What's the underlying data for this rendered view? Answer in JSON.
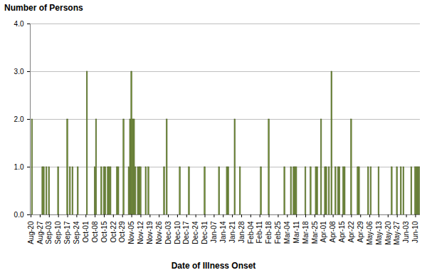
{
  "chart_data": {
    "type": "bar",
    "x_label": "Date of Illness Onset",
    "y_label": "Number of Persons",
    "categories": [
      "Aug-20",
      null,
      null,
      null,
      null,
      null,
      null,
      "Aug-27",
      null,
      null,
      null,
      null,
      null,
      null,
      "Sep-03",
      null,
      null,
      null,
      null,
      null,
      null,
      "Sep-10",
      null,
      null,
      null,
      null,
      null,
      null,
      "Sep-17",
      null,
      null,
      null,
      null,
      null,
      null,
      "Sep-24",
      null,
      null,
      null,
      null,
      null,
      null,
      "Oct-01",
      null,
      null,
      null,
      null,
      null,
      null,
      "Oct-08",
      null,
      null,
      null,
      null,
      null,
      null,
      "Oct-15",
      null,
      null,
      null,
      null,
      null,
      null,
      "Oct-22",
      null,
      null,
      null,
      null,
      null,
      null,
      "Oct-29",
      null,
      null,
      null,
      null,
      null,
      null,
      "Nov-05",
      null,
      null,
      null,
      null,
      null,
      null,
      "Nov-12",
      null,
      null,
      null,
      null,
      null,
      null,
      "Nov-19",
      null,
      null,
      null,
      null,
      null,
      null,
      "Nov-26",
      null,
      null,
      null,
      null,
      null,
      null,
      "Dec-03",
      null,
      null,
      null,
      null,
      null,
      null,
      "Dec-10",
      null,
      null,
      null,
      null,
      null,
      null,
      "Dec-17",
      null,
      null,
      null,
      null,
      null,
      null,
      "Dec-24",
      null,
      null,
      null,
      null,
      null,
      null,
      "Dec-31",
      null,
      null,
      null,
      null,
      null,
      null,
      "Jan-07",
      null,
      null,
      null,
      null,
      null,
      null,
      "Jan-14",
      null,
      null,
      null,
      null,
      null,
      null,
      "Jan-21",
      null,
      null,
      null,
      null,
      null,
      null,
      "Jan-28",
      null,
      null,
      null,
      null,
      null,
      null,
      "Feb-04",
      null,
      null,
      null,
      null,
      null,
      null,
      "Feb-11",
      null,
      null,
      null,
      null,
      null,
      null,
      "Feb-18",
      null,
      null,
      null,
      null,
      null,
      null,
      "Feb-25",
      null,
      null,
      null,
      null,
      null,
      null,
      "Mar-04",
      null,
      null,
      null,
      null,
      null,
      null,
      "Mar-11",
      null,
      null,
      null,
      null,
      null,
      null,
      "Mar-18",
      null,
      null,
      null,
      null,
      null,
      null,
      "Mar-25",
      null,
      null,
      null,
      null,
      null,
      null,
      "Apr-01",
      null,
      null,
      null,
      null,
      null,
      null,
      "Apr-08",
      null,
      null,
      null,
      null,
      null,
      null,
      "Apr-15",
      null,
      null,
      null,
      null,
      null,
      null,
      "Apr-22",
      null,
      null,
      null,
      null,
      null,
      null,
      "Apr-29",
      null,
      null,
      null,
      null,
      null,
      null,
      "May-06",
      null,
      null,
      null,
      null,
      null,
      null,
      "May-13",
      null,
      null,
      null,
      null,
      null,
      null,
      "May-20",
      null,
      null,
      null,
      null,
      null,
      null,
      "May-27",
      null,
      null,
      null,
      null,
      null,
      null,
      "Jun-03",
      null,
      null,
      null,
      null,
      null,
      null,
      "Jun-10",
      null,
      null,
      null
    ],
    "values": [
      0,
      2,
      0,
      0,
      0,
      0,
      0,
      0,
      0,
      1,
      1,
      0,
      1,
      0,
      1,
      0,
      0,
      0,
      0,
      0,
      0,
      1,
      0,
      0,
      0,
      0,
      0,
      0,
      2,
      0,
      1,
      0,
      1,
      0,
      0,
      0,
      1,
      0,
      0,
      0,
      0,
      0,
      0,
      3,
      0,
      0,
      0,
      0,
      0,
      1,
      2,
      0,
      0,
      0,
      1,
      0,
      1,
      1,
      0,
      1,
      1,
      1,
      0,
      0,
      0,
      0,
      1,
      1,
      0,
      0,
      0,
      2,
      0,
      0,
      0,
      1,
      2,
      3,
      2,
      2,
      1,
      0,
      1,
      1,
      1,
      0,
      0,
      0,
      1,
      0,
      1,
      0,
      0,
      0,
      0,
      0,
      0,
      0,
      0,
      0,
      0,
      0,
      1,
      0,
      2,
      0,
      0,
      0,
      0,
      0,
      0,
      0,
      0,
      0,
      1,
      0,
      0,
      0,
      0,
      0,
      0,
      1,
      0,
      0,
      0,
      0,
      0,
      0,
      0,
      0,
      0,
      0,
      0,
      1,
      0,
      0,
      0,
      0,
      0,
      0,
      0,
      0,
      0,
      0,
      1,
      0,
      0,
      0,
      0,
      0,
      1,
      1,
      0,
      0,
      0,
      0,
      2,
      0,
      0,
      0,
      1,
      0,
      0,
      0,
      0,
      0,
      0,
      0,
      0,
      0,
      0,
      0,
      0,
      0,
      0,
      0,
      1,
      0,
      0,
      0,
      0,
      0,
      2,
      0,
      0,
      0,
      0,
      0,
      0,
      0,
      0,
      0,
      0,
      0,
      1,
      0,
      0,
      0,
      0,
      1,
      0,
      1,
      1,
      1,
      0,
      0,
      0,
      0,
      0,
      0,
      1,
      0,
      0,
      0,
      1,
      0,
      0,
      0,
      1,
      1,
      0,
      0,
      2,
      0,
      0,
      1,
      1,
      0,
      1,
      0,
      3,
      0,
      0,
      1,
      0,
      1,
      1,
      0,
      0,
      1,
      1,
      0,
      0,
      0,
      0,
      2,
      0,
      0,
      0,
      0,
      1,
      1,
      0,
      0,
      0,
      0,
      0,
      0,
      1,
      0,
      1,
      0,
      0,
      0,
      0,
      0,
      1,
      0,
      0,
      0,
      0,
      0,
      0,
      0,
      0,
      0,
      1,
      0,
      0,
      0,
      1,
      0,
      0,
      1,
      0,
      1,
      0,
      0,
      0,
      0,
      0,
      1,
      0,
      0,
      1,
      1,
      1,
      1
    ],
    "color": "#77933c",
    "ylim": [
      0,
      4
    ],
    "yticks": [
      0,
      1,
      2,
      3,
      4
    ],
    "grid": true
  }
}
